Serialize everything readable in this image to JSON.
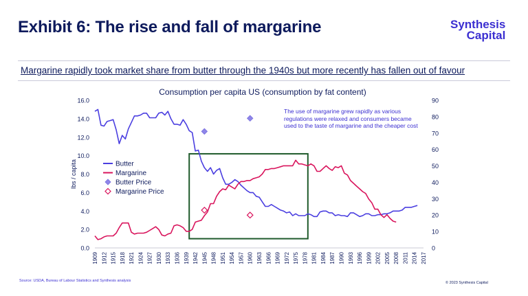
{
  "header": {
    "title": "Exhibit 6: The rise and fall of margarine",
    "logo_line1": "Synthesis",
    "logo_line2": "Capital",
    "subtitle": "Margarine rapidly took market share from butter through the 1940s but more recently has fallen out of favour"
  },
  "footer": {
    "source": "Source: USDA, Bureau of Labour Statistics and Synthesis analysis",
    "copyright": "© 2023 Synthesis Capital"
  },
  "colors": {
    "butter": "#4a3ee0",
    "margarine": "#d9145c",
    "box": "#1e5a2a",
    "text": "#0d1a5c"
  },
  "chart_data": {
    "type": "line",
    "title": "Consumption per capita US  (consumption by fat content)",
    "ylabel": "lbs / capita",
    "ylim": [
      0,
      16
    ],
    "y2lim": [
      0,
      90
    ],
    "yticks": [
      "0.0",
      "2.0",
      "4.0",
      "6.0",
      "8.0",
      "10.0",
      "12.0",
      "14.0",
      "16.0"
    ],
    "y2ticks": [
      "0",
      "10",
      "20",
      "30",
      "40",
      "50",
      "60",
      "70",
      "80",
      "90"
    ],
    "xlim": [
      1909,
      2017
    ],
    "xticks": [
      "1909",
      "1912",
      "1915",
      "1918",
      "1921",
      "1924",
      "1927",
      "1930",
      "1933",
      "1936",
      "1939",
      "1942",
      "1945",
      "1948",
      "1951",
      "1954",
      "1957",
      "1960",
      "1963",
      "1966",
      "1969",
      "1972",
      "1975",
      "1978",
      "1981",
      "1984",
      "1987",
      "1990",
      "1993",
      "1996",
      "1999",
      "2002",
      "2005",
      "2008",
      "2011",
      "2014",
      "2017"
    ],
    "annotation": "The use of margarine grew rapidly as various regulations were relaxed and consumers became used to the taste of margarine and the cheaper cost",
    "highlight_box": {
      "x_from": 1940,
      "x_to": 1979,
      "y_from": 1.0,
      "y_to": 10.2
    },
    "series": [
      {
        "name": "Butter",
        "axis": "left",
        "x": [
          1909,
          1910,
          1911,
          1912,
          1913,
          1914,
          1915,
          1916,
          1917,
          1918,
          1919,
          1920,
          1921,
          1922,
          1923,
          1924,
          1925,
          1926,
          1927,
          1928,
          1929,
          1930,
          1931,
          1932,
          1933,
          1934,
          1935,
          1936,
          1937,
          1938,
          1939,
          1940,
          1941,
          1942,
          1943,
          1944,
          1945,
          1946,
          1947,
          1948,
          1949,
          1950,
          1951,
          1952,
          1953,
          1954,
          1955,
          1956,
          1957,
          1958,
          1959,
          1960,
          1961,
          1962,
          1963,
          1964,
          1965,
          1966,
          1967,
          1968,
          1969,
          1970,
          1971,
          1972,
          1973,
          1974,
          1975,
          1976,
          1977,
          1978,
          1979,
          1980,
          1981,
          1982,
          1983,
          1984,
          1985,
          1986,
          1987,
          1988,
          1989,
          1990,
          1991,
          1992,
          1993,
          1994,
          1995,
          1996,
          1997,
          1998,
          1999,
          2000,
          2001,
          2002,
          2003,
          2004,
          2005,
          2006,
          2007,
          2008,
          2009,
          2010,
          2011,
          2012,
          2013,
          2014,
          2015
        ],
        "values": [
          14.8,
          15.0,
          13.3,
          13.2,
          13.7,
          13.8,
          13.9,
          12.8,
          11.3,
          12.2,
          11.8,
          12.9,
          13.6,
          14.3,
          14.3,
          14.4,
          14.6,
          14.6,
          14.1,
          14.1,
          14.1,
          14.6,
          14.7,
          14.4,
          14.8,
          14.0,
          13.4,
          13.4,
          13.3,
          13.9,
          13.4,
          12.7,
          12.5,
          10.5,
          10.6,
          9.4,
          8.7,
          8.3,
          8.7,
          8.0,
          8.4,
          8.6,
          7.6,
          6.9,
          6.9,
          7.1,
          7.4,
          7.2,
          6.8,
          6.5,
          6.2,
          6.0,
          6.0,
          5.6,
          5.5,
          5.0,
          4.5,
          4.5,
          4.7,
          4.5,
          4.3,
          4.1,
          4.0,
          3.8,
          3.9,
          3.5,
          3.7,
          3.5,
          3.5,
          3.5,
          3.7,
          3.6,
          3.4,
          3.4,
          3.9,
          4.0,
          4.0,
          3.8,
          3.8,
          3.5,
          3.6,
          3.5,
          3.5,
          3.4,
          3.8,
          3.8,
          3.6,
          3.4,
          3.5,
          3.7,
          3.7,
          3.5,
          3.5,
          3.6,
          3.6,
          3.7,
          3.7,
          3.8,
          4.0,
          4.0,
          4.0,
          4.1,
          4.4,
          4.4,
          4.4,
          4.5,
          4.6
        ]
      },
      {
        "name": "Margarine",
        "axis": "left",
        "x": [
          1909,
          1910,
          1911,
          1912,
          1913,
          1914,
          1915,
          1916,
          1917,
          1918,
          1919,
          1920,
          1921,
          1922,
          1923,
          1924,
          1925,
          1926,
          1927,
          1928,
          1929,
          1930,
          1931,
          1932,
          1933,
          1934,
          1935,
          1936,
          1937,
          1938,
          1939,
          1940,
          1941,
          1942,
          1943,
          1944,
          1945,
          1946,
          1947,
          1948,
          1949,
          1950,
          1951,
          1952,
          1953,
          1954,
          1955,
          1956,
          1957,
          1958,
          1959,
          1960,
          1961,
          1962,
          1963,
          1964,
          1965,
          1966,
          1967,
          1968,
          1969,
          1970,
          1971,
          1972,
          1973,
          1974,
          1975,
          1976,
          1977,
          1978,
          1979,
          1980,
          1981,
          1982,
          1983,
          1984,
          1985,
          1986,
          1987,
          1988,
          1989,
          1990,
          1991,
          1992,
          1993,
          1994,
          1995,
          1996,
          1997,
          1998,
          1999,
          2000,
          2001,
          2002,
          2003,
          2004,
          2005,
          2006,
          2007,
          2008
        ],
        "values": [
          1.3,
          0.9,
          1.0,
          1.2,
          1.3,
          1.3,
          1.3,
          1.6,
          2.2,
          2.7,
          2.7,
          2.7,
          1.7,
          1.5,
          1.6,
          1.6,
          1.6,
          1.7,
          1.9,
          2.1,
          2.3,
          2.0,
          1.4,
          1.3,
          1.5,
          1.6,
          2.4,
          2.5,
          2.4,
          2.2,
          1.8,
          1.8,
          2.0,
          2.8,
          2.9,
          3.0,
          3.5,
          3.9,
          4.8,
          4.8,
          5.6,
          6.1,
          6.4,
          6.3,
          6.8,
          6.6,
          6.4,
          6.9,
          7.2,
          7.2,
          7.3,
          7.3,
          7.5,
          7.6,
          7.7,
          8.0,
          8.5,
          8.5,
          8.6,
          8.6,
          8.7,
          8.8,
          8.9,
          8.9,
          8.9,
          8.9,
          9.5,
          9.1,
          9.1,
          9.0,
          8.9,
          9.1,
          8.9,
          8.3,
          8.3,
          8.6,
          8.9,
          8.6,
          8.4,
          8.8,
          8.7,
          8.9,
          8.1,
          7.9,
          7.3,
          7.0,
          6.7,
          6.4,
          6.1,
          5.9,
          5.3,
          4.9,
          4.2,
          4.2,
          3.6,
          3.3,
          3.6,
          3.2,
          2.9,
          2.8
        ]
      },
      {
        "name": "Butter Price",
        "axis": "right",
        "marker": "diamond-filled",
        "x": [
          1945,
          1960
        ],
        "values": [
          71,
          79
        ]
      },
      {
        "name": "Margarine Price",
        "axis": "right",
        "marker": "diamond-open",
        "x": [
          1945,
          1960
        ],
        "values": [
          23,
          20
        ]
      }
    ]
  }
}
